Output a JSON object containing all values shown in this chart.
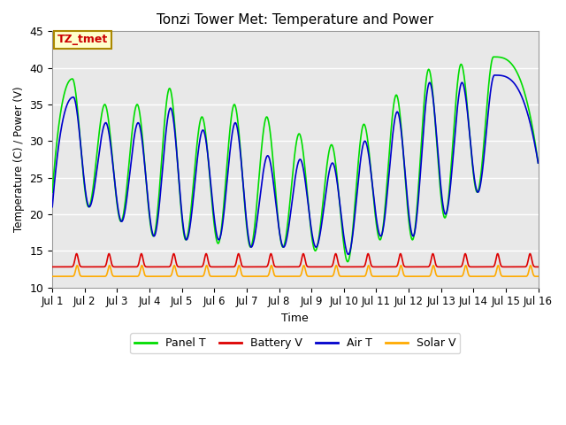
{
  "title": "Tonzi Tower Met: Temperature and Power",
  "xlabel": "Time",
  "ylabel": "Temperature (C) / Power (V)",
  "ylim": [
    10,
    45
  ],
  "xlim": [
    0,
    15
  ],
  "xtick_labels": [
    "Jul 1",
    "Jul 2",
    "Jul 3",
    "Jul 4",
    "Jul 5",
    "Jul 6",
    "Jul 7",
    "Jul 8",
    "Jul 9",
    "Jul 10",
    "Jul 11",
    "Jul 12",
    "Jul 13",
    "Jul 14",
    "Jul 15",
    "Jul 16"
  ],
  "xtick_positions": [
    0,
    1,
    2,
    3,
    4,
    5,
    6,
    7,
    8,
    9,
    10,
    11,
    12,
    13,
    14,
    15
  ],
  "ytick_positions": [
    10,
    15,
    20,
    25,
    30,
    35,
    40,
    45
  ],
  "bg_color": "#e8e8e8",
  "panel_color": "#00dd00",
  "battery_color": "#dd0000",
  "air_color": "#0000cc",
  "solar_color": "#ffaa00",
  "annotation_text": "TZ_tmet",
  "annotation_color": "#cc0000",
  "annotation_bg": "#ffffcc",
  "annotation_border": "#aa8800",
  "panel_peaks": [
    38.5,
    35.0,
    35.0,
    37.2,
    33.3,
    35.0,
    33.3,
    31.0,
    29.5,
    32.3,
    36.3,
    39.8,
    40.5,
    41.5
  ],
  "panel_troughs": [
    21.0,
    19.0,
    17.0,
    16.5,
    16.0,
    15.5,
    15.5,
    15.0,
    13.5,
    16.5,
    16.5,
    19.5,
    23.0,
    22.5
  ],
  "air_peaks": [
    36.0,
    32.5,
    32.5,
    34.5,
    31.5,
    32.5,
    28.0,
    27.5,
    27.0,
    30.0,
    34.0,
    38.0,
    38.0,
    39.0
  ],
  "air_troughs": [
    21.0,
    19.0,
    17.0,
    16.5,
    16.5,
    15.5,
    15.5,
    15.5,
    14.5,
    17.0,
    17.0,
    20.0,
    23.0,
    22.5
  ]
}
